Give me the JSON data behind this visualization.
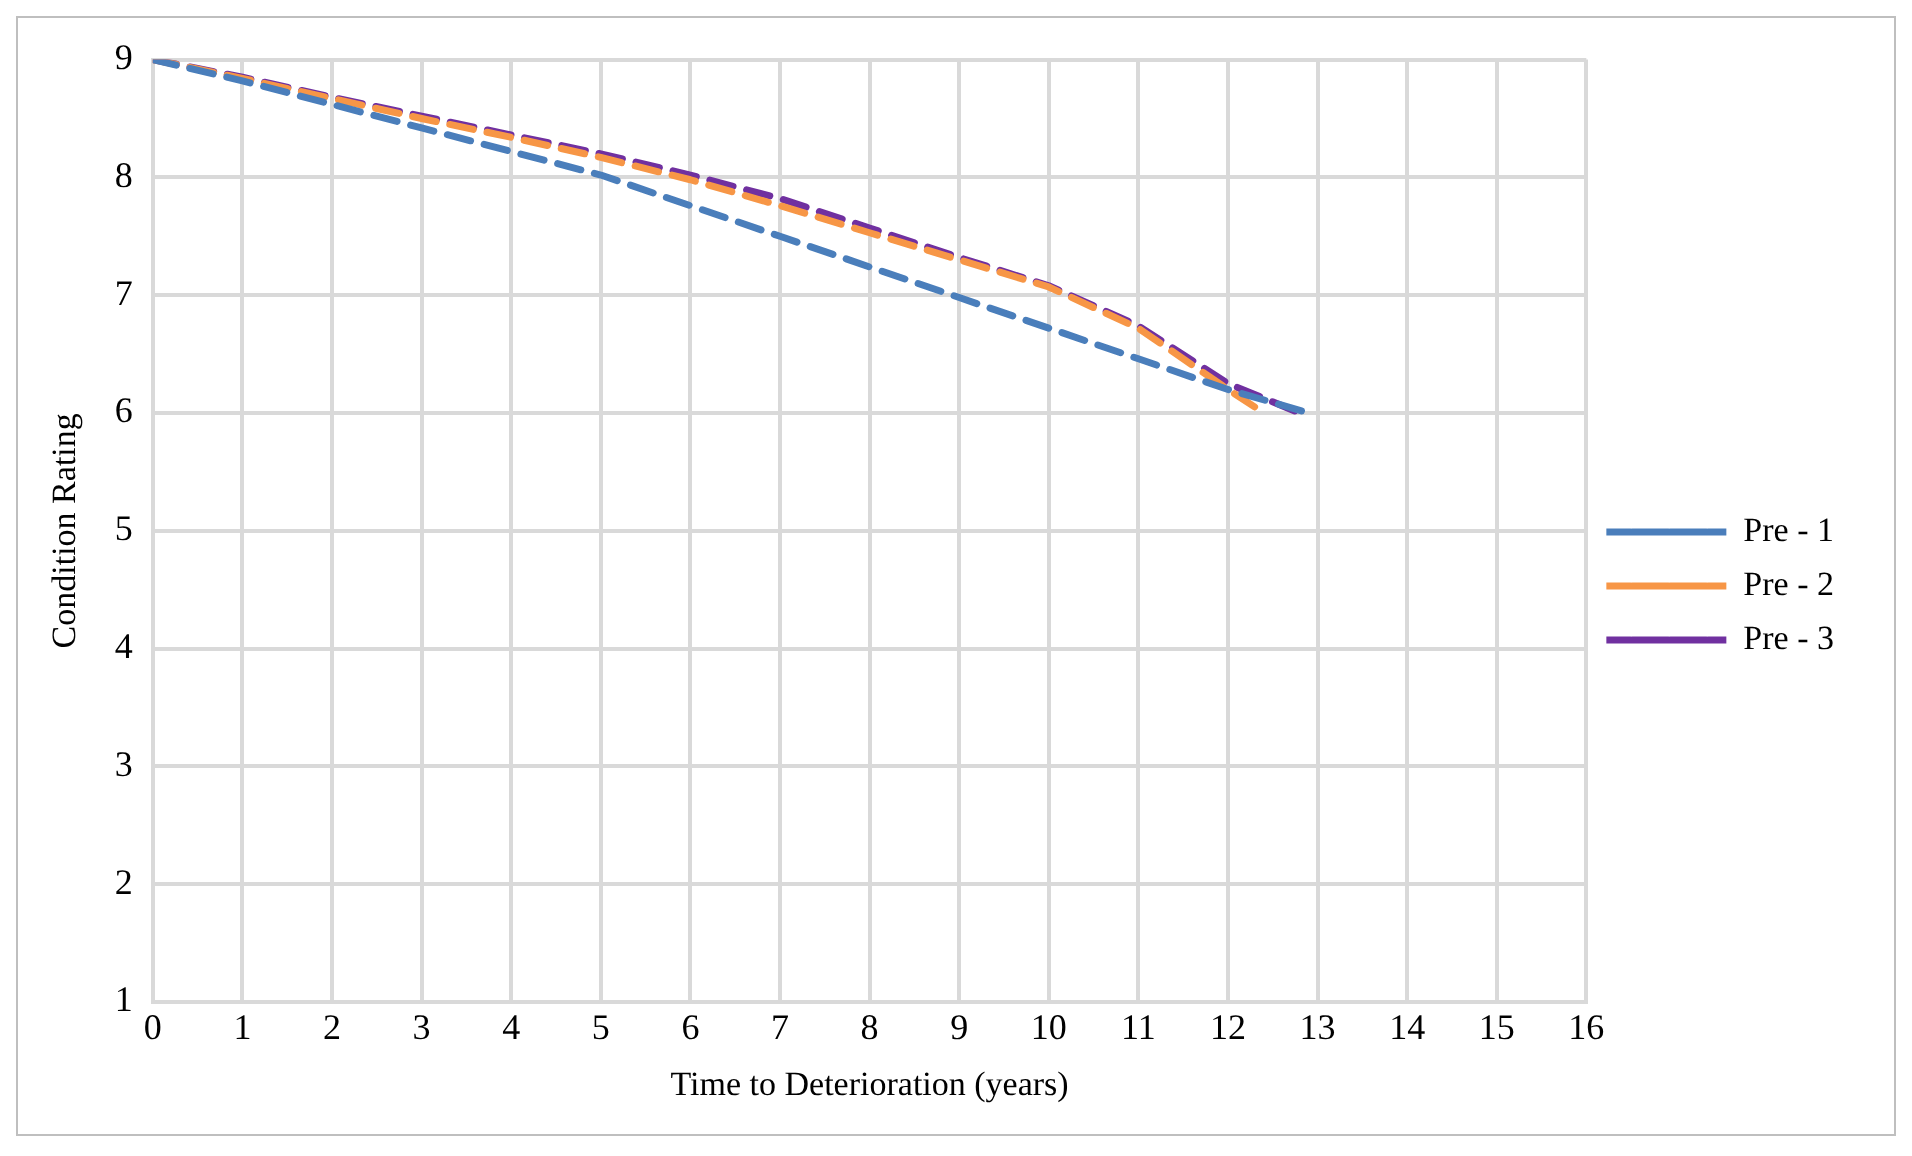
{
  "chart_data": {
    "type": "line",
    "xlabel": "Time to Deterioration (years)",
    "ylabel": "Condition Rating",
    "xlim": [
      0,
      16
    ],
    "xticks": [
      0,
      1,
      2,
      3,
      4,
      5,
      6,
      7,
      8,
      9,
      10,
      11,
      12,
      13,
      14,
      15,
      16
    ],
    "ylim": [
      1,
      9
    ],
    "yticks": [
      1,
      2,
      3,
      4,
      5,
      6,
      7,
      8,
      9
    ],
    "grid": true,
    "legend": "right",
    "line_style": "dashed",
    "marker": "none",
    "series": [
      {
        "name": "Pre - 1",
        "color": "#4a7ebb",
        "x": [
          0,
          1,
          2,
          3,
          4,
          5,
          6,
          7,
          8,
          9,
          10,
          11,
          12,
          12.9
        ],
        "values": [
          9,
          8.82,
          8.62,
          8.42,
          8.22,
          8.02,
          7.76,
          7.5,
          7.24,
          6.98,
          6.72,
          6.46,
          6.2,
          6.0
        ]
      },
      {
        "name": "Pre - 2",
        "color": "#f79646",
        "x": [
          0,
          1,
          2,
          3,
          4,
          5,
          6,
          7,
          8,
          9,
          10,
          11,
          12,
          12.4
        ],
        "values": [
          9,
          8.84,
          8.67,
          8.5,
          8.34,
          8.17,
          7.98,
          7.76,
          7.53,
          7.3,
          7.07,
          6.72,
          6.2,
          6.0
        ]
      },
      {
        "name": "Pre - 3",
        "color": "#7030a0",
        "x": [
          0,
          1,
          2,
          3,
          4,
          5,
          6,
          7,
          8,
          9,
          10,
          11,
          12,
          12.8
        ],
        "values": [
          9,
          8.85,
          8.68,
          8.52,
          8.36,
          8.2,
          8.02,
          7.82,
          7.57,
          7.32,
          7.08,
          6.74,
          6.25,
          6.0
        ]
      }
    ]
  }
}
